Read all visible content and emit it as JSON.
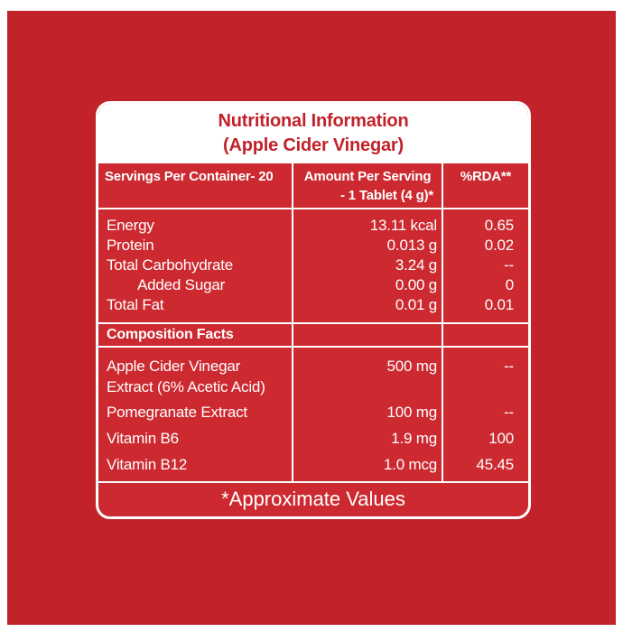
{
  "title": {
    "line1": "Nutritional Information",
    "line2": "(Apple Cider Vinegar)"
  },
  "table": {
    "header": {
      "col1": "Servings Per Container- 20",
      "col2_line1": "Amount Per Serving",
      "col2_line2": "- 1 Tablet (4 g)*",
      "col3": "%RDA**"
    },
    "nutrients": [
      {
        "name": "Energy",
        "amount": "13.11 kcal",
        "rda": "0.65",
        "indent": false
      },
      {
        "name": "Protein",
        "amount": "0.013 g",
        "rda": "0.02",
        "indent": false
      },
      {
        "name": "Total Carbohydrate",
        "amount": "3.24 g",
        "rda": "--",
        "indent": false
      },
      {
        "name": "Added Sugar",
        "amount": "0.00 g",
        "rda": "0",
        "indent": true
      },
      {
        "name": "Total Fat",
        "amount": "0.01 g",
        "rda": "0.01",
        "indent": false
      }
    ],
    "section_label": "Composition Facts",
    "composition": [
      {
        "name_line1": "Apple Cider Vinegar",
        "name_line2": "Extract (6% Acetic Acid)",
        "amount": "500 mg",
        "rda": "--"
      },
      {
        "name_line1": "Pomegranate Extract",
        "amount": "100 mg",
        "rda": "--"
      },
      {
        "name_line1": "Vitamin B6",
        "amount": "1.9 mg",
        "rda": "100"
      },
      {
        "name_line1": "Vitamin B12",
        "amount": "1.0 mcg",
        "rda": "45.45"
      }
    ],
    "footer": "*Approximate Values"
  },
  "colors": {
    "background_red": "#c2232a",
    "panel_red": "#cc2a30",
    "title_red": "#c32129",
    "border_white": "#ffffff"
  }
}
